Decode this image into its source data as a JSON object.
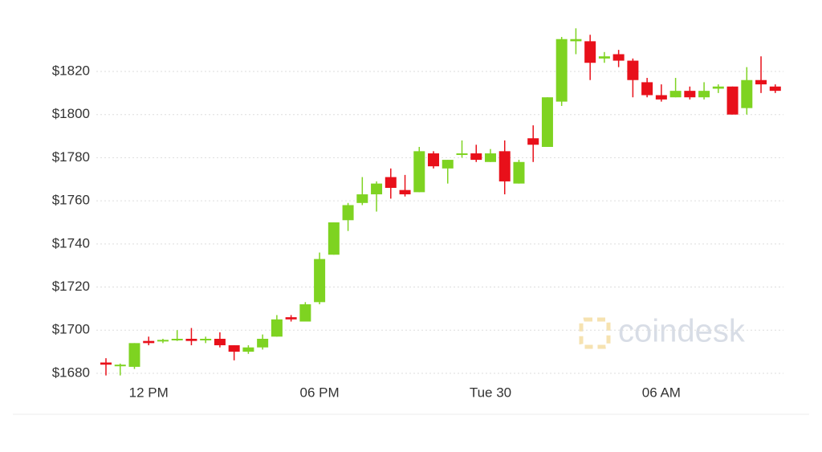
{
  "chart_data": {
    "type": "candlestick",
    "watermark": "coindesk",
    "categories": [
      null,
      null,
      null,
      "12 PM",
      null,
      null,
      null,
      null,
      null,
      null,
      null,
      null,
      null,
      null,
      null,
      "06 PM",
      null,
      null,
      null,
      null,
      null,
      null,
      null,
      null,
      null,
      null,
      null,
      "Tue 30",
      null,
      null,
      null,
      null,
      null,
      null,
      null,
      null,
      null,
      null,
      null,
      "06 AM",
      null,
      null,
      null,
      null,
      null,
      null,
      null,
      null
    ],
    "open": [
      1685,
      1684,
      1683,
      1695,
      1695,
      1695.5,
      1696,
      1695.5,
      1696,
      1693,
      1690,
      1692,
      1697,
      1706,
      1704,
      1713,
      1735,
      1751,
      1759,
      1763,
      1771,
      1765,
      1764,
      1782,
      1775,
      1782,
      1782,
      1778,
      1783,
      1768,
      1789,
      1785,
      1806,
      1834,
      1834,
      1826,
      1828,
      1825,
      1815,
      1809,
      1808,
      1811,
      1808,
      1812,
      1813,
      1803,
      1816,
      1813
    ],
    "high": [
      1687,
      1684.5,
      1694,
      1697,
      1696,
      1700,
      1701,
      1697,
      1699,
      1693,
      1693,
      1698,
      1707,
      1707,
      1713,
      1736,
      1750,
      1759,
      1771,
      1769,
      1775,
      1772,
      1785,
      1783,
      1779,
      1788,
      1786,
      1784,
      1788,
      1779,
      1795,
      1808,
      1836,
      1840,
      1837,
      1829,
      1830,
      1826,
      1817,
      1814,
      1817,
      1813,
      1815,
      1814,
      1813,
      1822,
      1827,
      1814
    ],
    "low": [
      1679,
      1679,
      1682,
      1693,
      1694,
      1695,
      1693,
      1694,
      1692,
      1686,
      1689,
      1691,
      1697,
      1704,
      1704,
      1712,
      1735,
      1746,
      1758,
      1755,
      1761,
      1762,
      1764,
      1775,
      1768,
      1780,
      1778,
      1778,
      1763,
      1768,
      1778,
      1785,
      1804,
      1828,
      1816,
      1824,
      1822,
      1808,
      1808,
      1806,
      1808,
      1807,
      1807,
      1810,
      1800,
      1800,
      1810,
      1810
    ],
    "close": [
      1684,
      1684,
      1694,
      1694,
      1695.5,
      1696,
      1695,
      1696,
      1693,
      1690,
      1692,
      1696,
      1705,
      1705,
      1712,
      1733,
      1750,
      1758,
      1763,
      1768,
      1766,
      1763,
      1783,
      1776,
      1779,
      1782,
      1779,
      1782,
      1769,
      1778,
      1786,
      1808,
      1835,
      1835,
      1824,
      1827,
      1825,
      1816,
      1809,
      1807,
      1811,
      1808,
      1811,
      1813,
      1800,
      1816,
      1814,
      1811
    ],
    "up_color": "#7ed321",
    "down_color": "#e8101a",
    "ylim": [
      1676,
      1842
    ],
    "yticks": [
      {
        "value": 1680,
        "label": "$1680"
      },
      {
        "value": 1700,
        "label": "$1700"
      },
      {
        "value": 1720,
        "label": "$1720"
      },
      {
        "value": 1740,
        "label": "$1740"
      },
      {
        "value": 1760,
        "label": "$1760"
      },
      {
        "value": 1780,
        "label": "$1780"
      },
      {
        "value": 1800,
        "label": "$1800"
      },
      {
        "value": 1820,
        "label": "$1820"
      }
    ],
    "grid": true
  }
}
